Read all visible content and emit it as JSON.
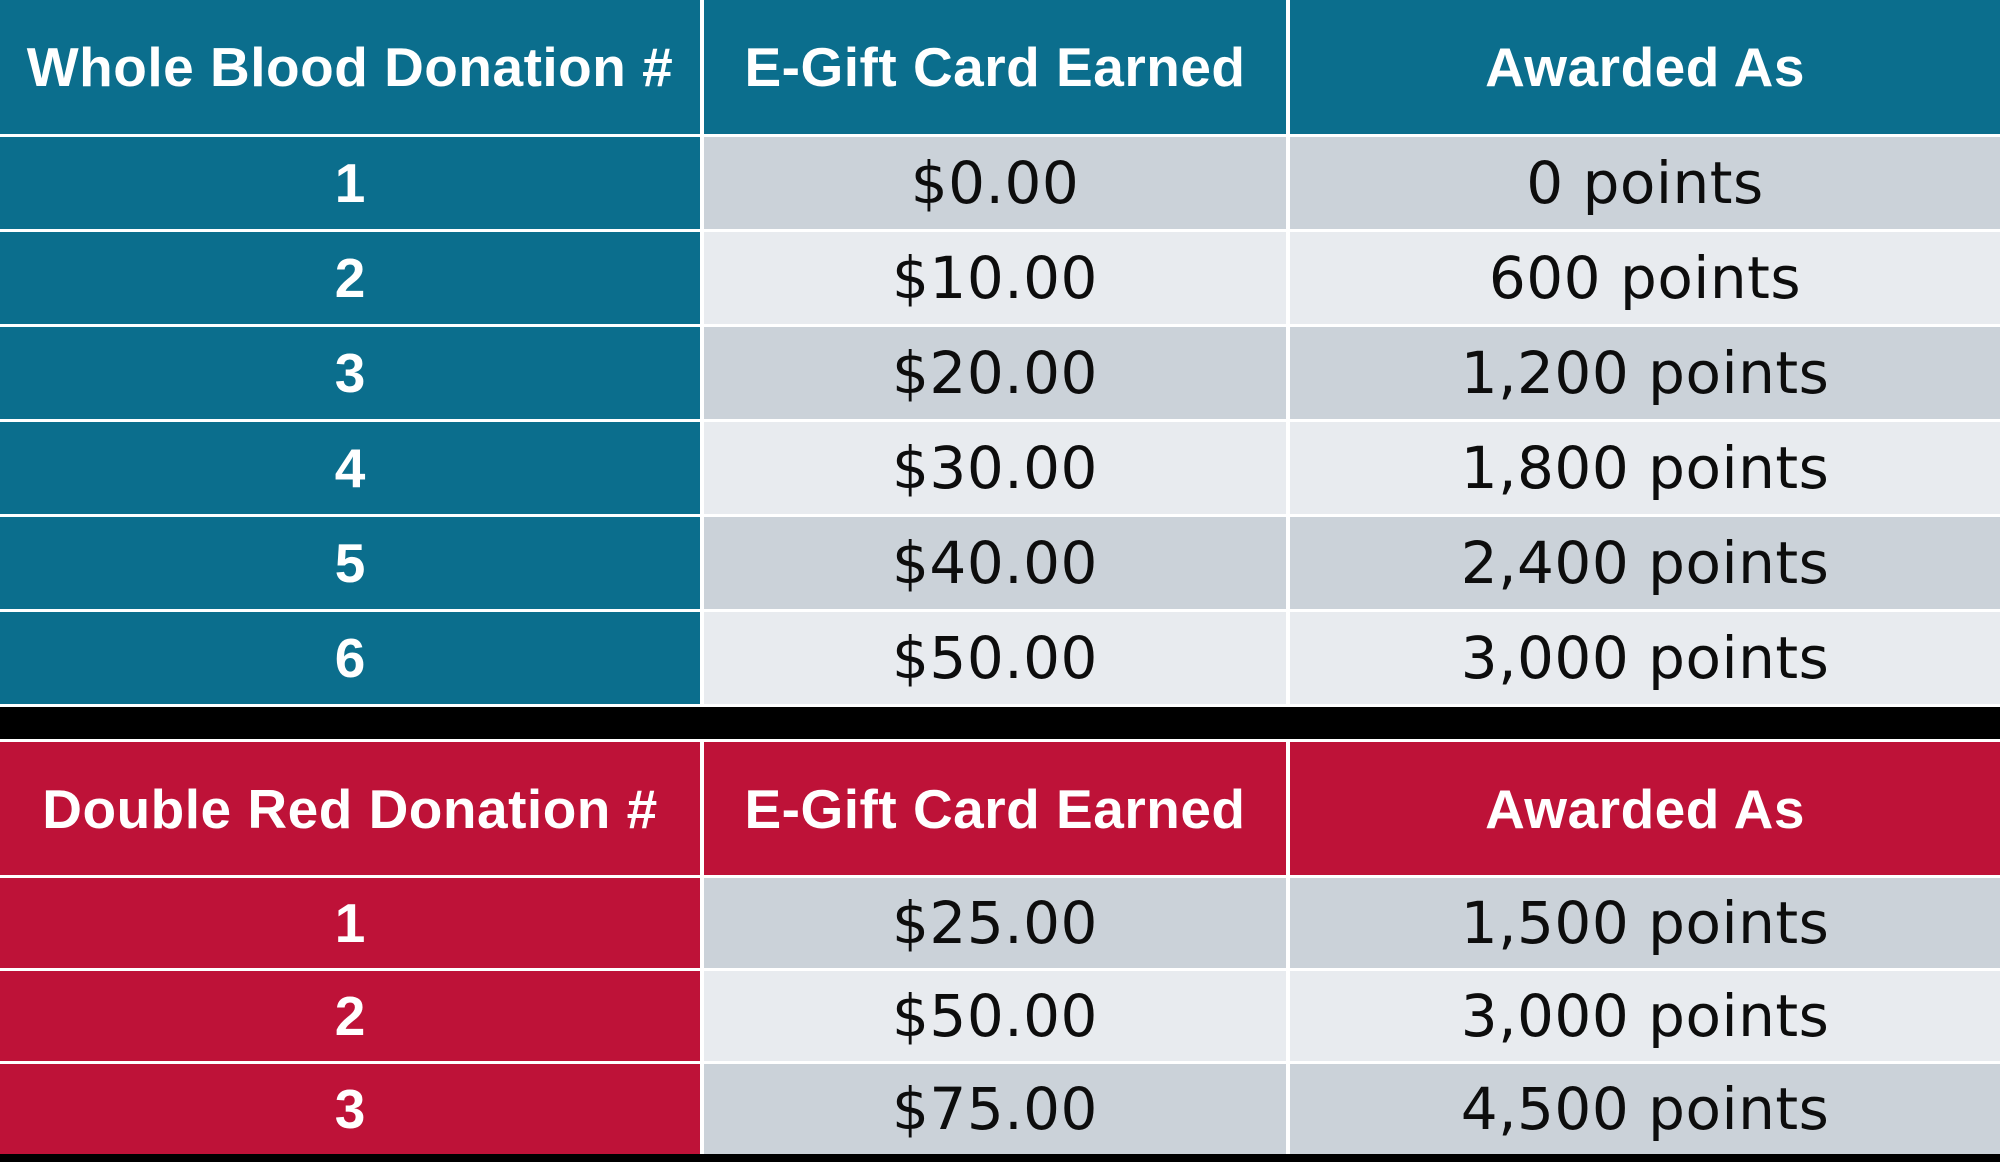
{
  "colors": {
    "teal_accent": "#0B6E8D",
    "red_accent": "#BE1238",
    "row_dark": "#CBD2D9",
    "row_light": "#E8EBEF",
    "separator": "#000000",
    "header_text": "#FFFFFF",
    "cell_text": "#0D0D0D"
  },
  "tables": [
    {
      "name": "whole-blood",
      "headers": [
        "Whole Blood Donation #",
        "E-Gift Card Earned",
        "Awarded As"
      ],
      "rows": [
        {
          "n": "1",
          "gift": "$0.00",
          "points": "0 points"
        },
        {
          "n": "2",
          "gift": "$10.00",
          "points": "600 points"
        },
        {
          "n": "3",
          "gift": "$20.00",
          "points": "1,200 points"
        },
        {
          "n": "4",
          "gift": "$30.00",
          "points": "1,800 points"
        },
        {
          "n": "5",
          "gift": "$40.00",
          "points": "2,400 points"
        },
        {
          "n": "6",
          "gift": "$50.00",
          "points": "3,000 points"
        }
      ]
    },
    {
      "name": "double-red",
      "headers": [
        "Double Red Donation #",
        "E-Gift Card Earned",
        "Awarded As"
      ],
      "rows": [
        {
          "n": "1",
          "gift": "$25.00",
          "points": "1,500 points"
        },
        {
          "n": "2",
          "gift": "$50.00",
          "points": "3,000 points"
        },
        {
          "n": "3",
          "gift": "$75.00",
          "points": "4,500 points"
        }
      ]
    }
  ]
}
